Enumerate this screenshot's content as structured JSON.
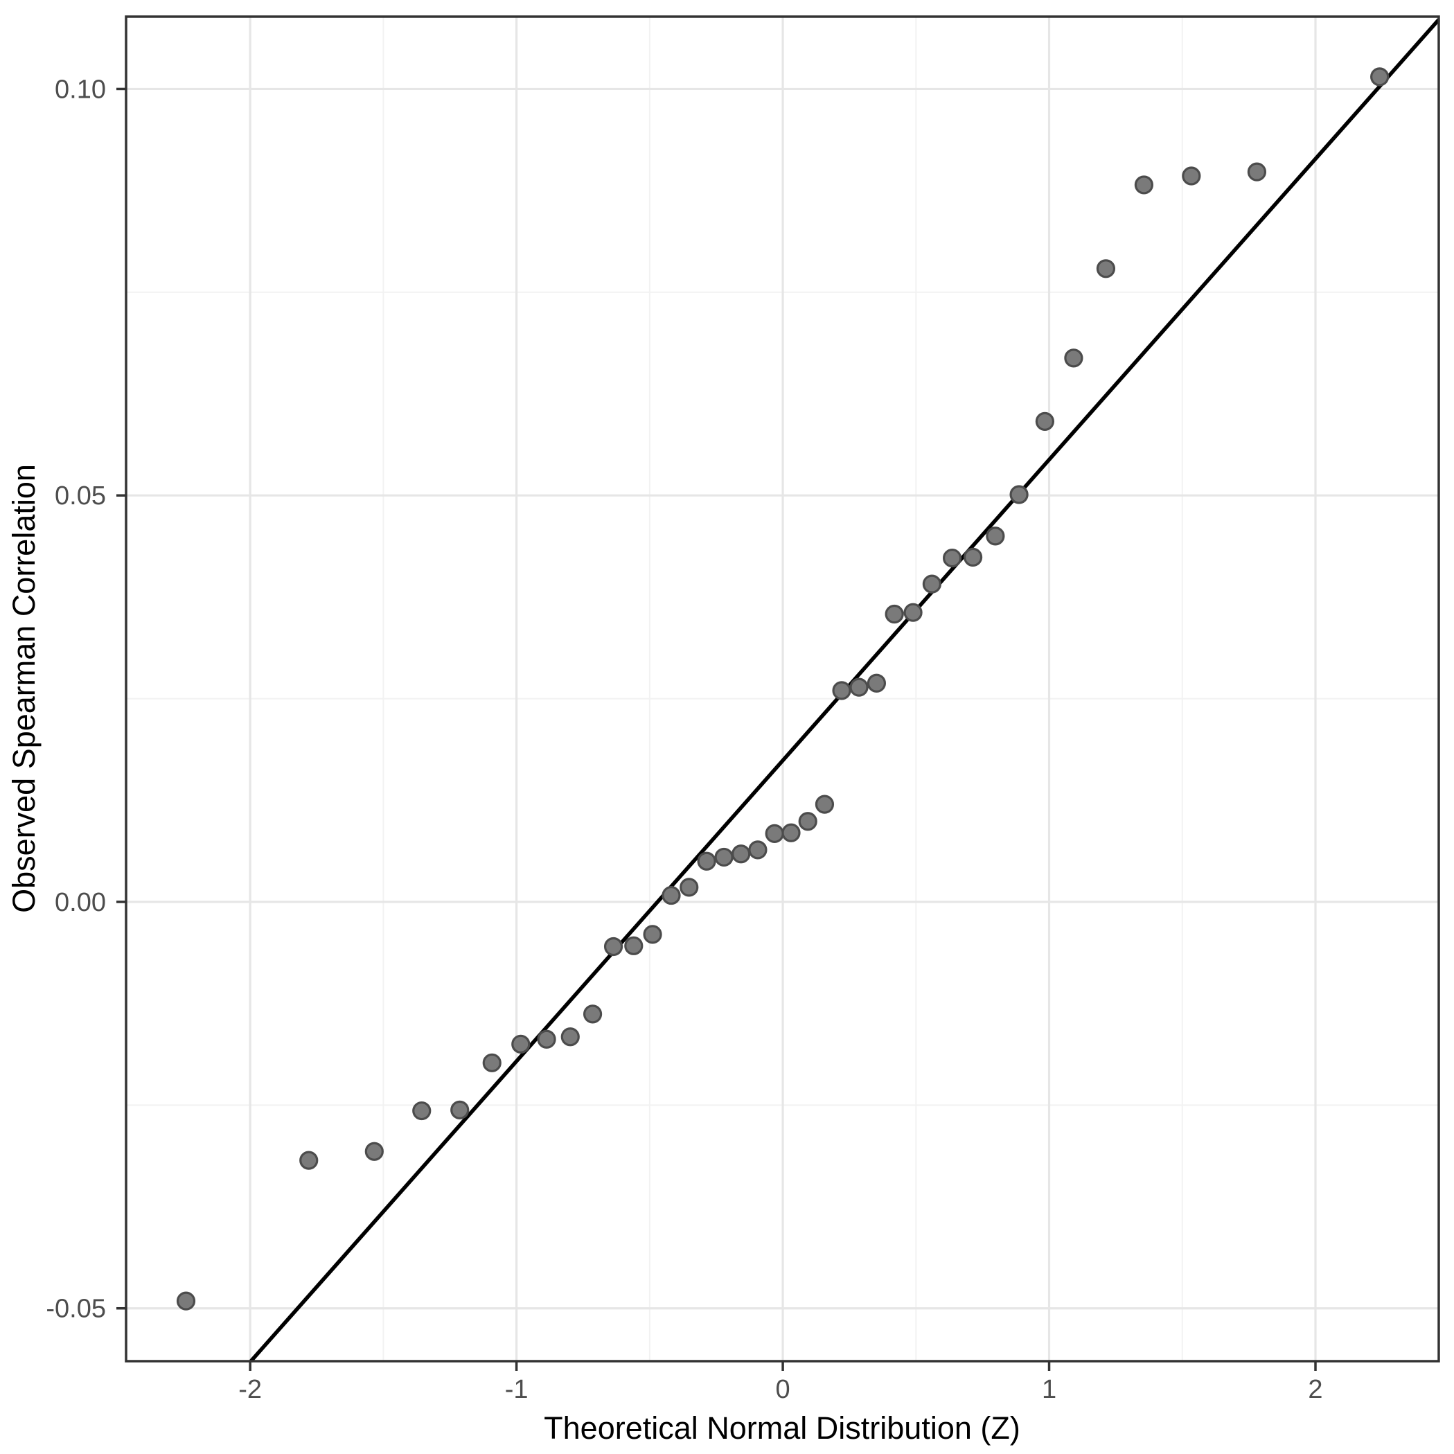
{
  "figure": {
    "title": "",
    "background_color": "#ffffff"
  },
  "chart_data": {
    "type": "scatter",
    "subtype": "qq-plot",
    "title": "",
    "xlabel": "Theoretical Normal Distribution (Z)",
    "ylabel": "Observed Spearman Correlation",
    "xlim": [
      -2.466,
      2.463
    ],
    "ylim": [
      -0.0565,
      0.1089
    ],
    "grid": true,
    "legend": "none",
    "x_ticks": {
      "values": [
        -2,
        -1,
        0,
        1,
        2
      ],
      "labels": [
        "-2",
        "-1",
        "0",
        "1",
        "2"
      ]
    },
    "y_ticks": {
      "values": [
        -0.05,
        0.0,
        0.05,
        0.1
      ],
      "labels": [
        "-0.05",
        "0.00",
        "0.05",
        "0.10"
      ]
    },
    "x_minor_gridlines": [
      -1.5,
      -0.5,
      0.5,
      1.5
    ],
    "y_minor_gridlines": [
      -0.025,
      0.025,
      0.075
    ],
    "reference_line": {
      "slope": 0.037,
      "intercept": 0.0174,
      "color": "#000000",
      "width": 5.5
    },
    "points": [
      [
        -2.241,
        -0.0491
      ],
      [
        -1.78,
        -0.0318
      ],
      [
        -1.534,
        -0.0307
      ],
      [
        -1.356,
        -0.0257
      ],
      [
        -1.213,
        -0.0256
      ],
      [
        -1.092,
        -0.0198
      ],
      [
        -0.984,
        -0.0175
      ],
      [
        -0.887,
        -0.0169
      ],
      [
        -0.798,
        -0.0166
      ],
      [
        -0.714,
        -0.0138
      ],
      [
        -0.636,
        -0.0055
      ],
      [
        -0.56,
        -0.0054
      ],
      [
        -0.489,
        -0.004
      ],
      [
        -0.419,
        0.0008
      ],
      [
        -0.352,
        0.0018
      ],
      [
        -0.286,
        0.005
      ],
      [
        -0.221,
        0.0055
      ],
      [
        -0.157,
        0.0059
      ],
      [
        -0.094,
        0.0064
      ],
      [
        -0.031,
        0.0084
      ],
      [
        0.031,
        0.0085
      ],
      [
        0.094,
        0.0099
      ],
      [
        0.157,
        0.012
      ],
      [
        0.221,
        0.026
      ],
      [
        0.286,
        0.0264
      ],
      [
        0.352,
        0.0269
      ],
      [
        0.419,
        0.0354
      ],
      [
        0.489,
        0.0356
      ],
      [
        0.56,
        0.0391
      ],
      [
        0.636,
        0.0423
      ],
      [
        0.714,
        0.0424
      ],
      [
        0.798,
        0.045
      ],
      [
        0.887,
        0.0501
      ],
      [
        0.984,
        0.0591
      ],
      [
        1.092,
        0.0669
      ],
      [
        1.213,
        0.0779
      ],
      [
        1.356,
        0.0882
      ],
      [
        1.534,
        0.0893
      ],
      [
        1.78,
        0.0898
      ],
      [
        2.241,
        0.1015
      ]
    ],
    "point_style": {
      "radius": 12,
      "fill": "#7a7a7a",
      "stroke": "#4c4c4c",
      "stroke_width": 3.2
    },
    "colors": {
      "panel_background": "#ffffff",
      "panel_border": "#333333",
      "grid_major": "#e6e6e6",
      "grid_minor": "#f2f2f2",
      "tick_mark": "#333333",
      "tick_label": "#4d4d4d",
      "axis_title": "#000000"
    }
  }
}
